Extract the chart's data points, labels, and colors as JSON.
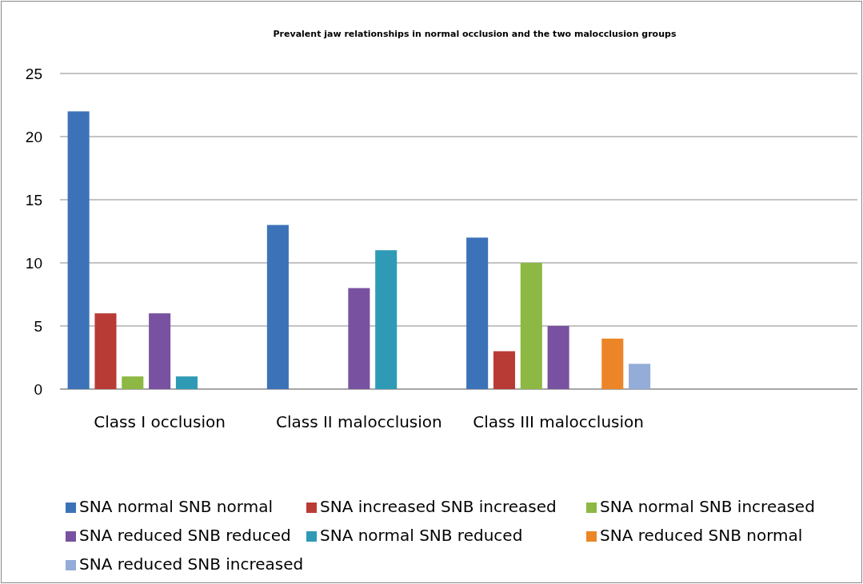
{
  "chart_data": {
    "type": "bar",
    "title": "Prevalent jaw relationships in normal occlusion and the two malocclusion groups",
    "categories": [
      "Class I occlusion",
      "Class II malocclusion",
      "Class III malocclusion",
      null
    ],
    "series": [
      {
        "name": "SNA normal SNB normal",
        "color": "#3c72b8",
        "values": [
          22,
          13,
          12,
          null
        ]
      },
      {
        "name": "SNA increased SNB increased",
        "color": "#b93b36",
        "values": [
          6,
          null,
          3,
          null
        ]
      },
      {
        "name": "SNA normal SNB increased",
        "color": "#8cb843",
        "values": [
          1,
          null,
          10,
          null
        ]
      },
      {
        "name": "SNA reduced SNB reduced",
        "color": "#7852a0",
        "values": [
          6,
          8,
          5,
          null
        ]
      },
      {
        "name": "SNA normal SNB reduced",
        "color": "#2f9ab6",
        "values": [
          1,
          11,
          null,
          null
        ]
      },
      {
        "name": "SNA reduced SNB normal",
        "color": "#ec8527",
        "values": [
          null,
          null,
          4,
          null
        ]
      },
      {
        "name": "SNA reduced SNB increased",
        "color": "#93acd8",
        "values": [
          null,
          null,
          2,
          null
        ]
      }
    ],
    "ylim": [
      0,
      25
    ],
    "yticks": [
      0,
      5,
      10,
      15,
      20,
      25
    ],
    "grid": "y",
    "legend": "bottom"
  }
}
